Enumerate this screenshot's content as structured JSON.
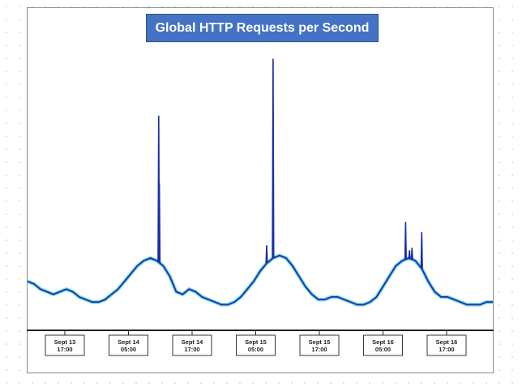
{
  "chart_data": {
    "type": "line",
    "title": "Global HTTP Requests per Second",
    "xlabel": "",
    "ylabel": "",
    "grid": false,
    "legend": "none",
    "colors": {
      "line": "#1a2fa8",
      "halo": "#5fd0e0",
      "title_bg": "#4472c4",
      "title_text": "#ffffff",
      "axis": "#222222"
    },
    "xlim": [
      -8,
      64
    ],
    "ylim": [
      0,
      100
    ],
    "x_unit": "hours since Sept 13 17:00",
    "ticks": [
      {
        "x": 0,
        "line1": "Sept 13",
        "line2": "17:00"
      },
      {
        "x": 12,
        "line1": "Sept 14",
        "line2": "05:00"
      },
      {
        "x": 24,
        "line1": "Sept 14",
        "line2": "17:00"
      },
      {
        "x": 36,
        "line1": "Sept 15",
        "line2": "05:00"
      },
      {
        "x": 48,
        "line1": "Sept 15",
        "line2": "17:00"
      },
      {
        "x": 60,
        "line1": "Sept 16",
        "line2": "05:00"
      },
      {
        "x": 72,
        "line1": "Sept 16",
        "line2": "17:00"
      }
    ],
    "series": [
      {
        "name": "",
        "x": [
          -8,
          -7,
          -6,
          -5,
          -4,
          -3,
          -2,
          -1,
          0,
          1,
          2,
          3,
          4,
          5,
          6,
          7,
          8,
          9,
          10,
          11,
          12,
          13,
          14,
          15,
          16,
          17,
          18,
          19,
          20,
          21,
          22,
          23,
          24,
          25,
          26,
          27,
          28,
          29,
          30,
          31,
          32,
          33,
          34,
          35,
          36,
          37,
          38,
          39,
          40,
          41,
          42,
          43,
          44,
          45,
          46,
          47,
          48,
          49,
          50,
          51,
          52,
          53,
          54,
          55,
          56,
          57,
          58,
          59,
          60,
          61,
          62,
          63,
          64
        ],
        "values": [
          12,
          11,
          9,
          8,
          7,
          8,
          9,
          8,
          6,
          5,
          4,
          4,
          5,
          7,
          9,
          12,
          15,
          18,
          20,
          21,
          20,
          18,
          14,
          8,
          7,
          9,
          8,
          6,
          5,
          4,
          3,
          3,
          4,
          6,
          9,
          12,
          16,
          19,
          21,
          22,
          21,
          18,
          14,
          10,
          7,
          5,
          5,
          6,
          6,
          5,
          4,
          3,
          3,
          4,
          6,
          10,
          14,
          18,
          20,
          21,
          20,
          17,
          12,
          8,
          6,
          6,
          5,
          4,
          3,
          3,
          3,
          4,
          4
        ]
      }
    ],
    "spikes": [
      {
        "x": 12.3,
        "value": 76
      },
      {
        "x": 12.4,
        "value": 50
      },
      {
        "x": 29.0,
        "value": 26
      },
      {
        "x": 30.0,
        "value": 98
      },
      {
        "x": 50.5,
        "value": 35
      },
      {
        "x": 51.1,
        "value": 24
      },
      {
        "x": 51.5,
        "value": 25
      },
      {
        "x": 53.0,
        "value": 31
      }
    ]
  }
}
